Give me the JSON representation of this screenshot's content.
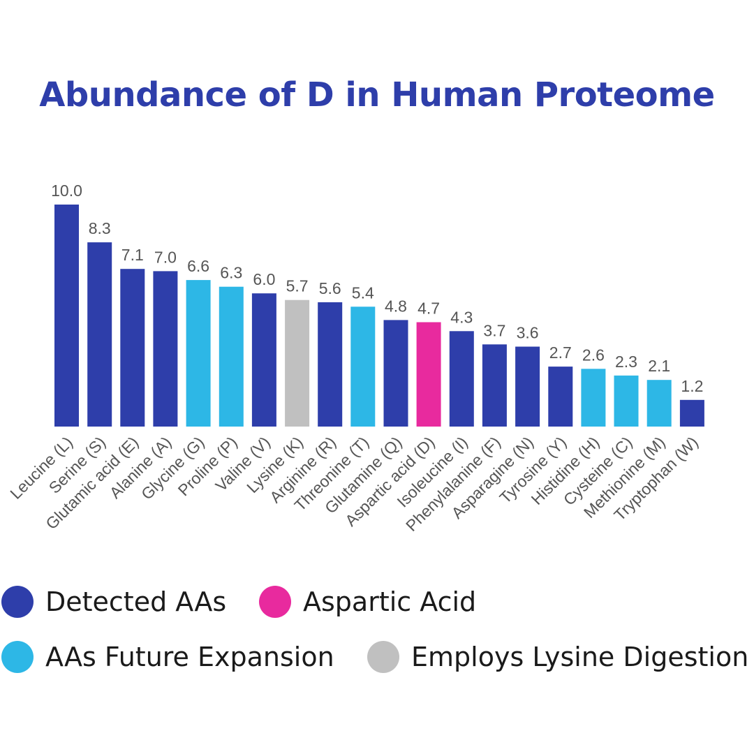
{
  "chart_data": {
    "type": "bar",
    "title": "Abundance of D in Human Proteome",
    "categories": [
      "Leucine (L)",
      "Serine (S)",
      "Glutamic acid (E)",
      "Alanine (A)",
      "Glycine (G)",
      "Proline (P)",
      "Valine (V)",
      "Lysine (K)",
      "Arginine (R)",
      "Threonine (T)",
      "Glutamine (Q)",
      "Aspartic acid (D)",
      "Isoleucine (I)",
      "Phenylalanine (F)",
      "Asparagine (N)",
      "Tyrosine (Y)",
      "Histidine (H)",
      "Cysteine (C)",
      "Methionine (M)",
      "Tryptophan (W)"
    ],
    "values": [
      10.0,
      8.3,
      7.1,
      7.0,
      6.6,
      6.3,
      6.0,
      5.7,
      5.6,
      5.4,
      4.8,
      4.7,
      4.3,
      3.7,
      3.6,
      2.7,
      2.6,
      2.3,
      2.1,
      1.2
    ],
    "value_labels": [
      "10.0",
      "8.3",
      "7.1",
      "7.0",
      "6.6",
      "6.3",
      "6.0",
      "5.7",
      "5.6",
      "5.4",
      "4.8",
      "4.7",
      "4.3",
      "3.7",
      "3.6",
      "2.7",
      "2.6",
      "2.3",
      "2.1",
      "1.2"
    ],
    "groups": [
      "detected",
      "detected",
      "detected",
      "detected",
      "future",
      "future",
      "detected",
      "lysine",
      "detected",
      "future",
      "detected",
      "aspartic",
      "detected",
      "detected",
      "detected",
      "detected",
      "future",
      "future",
      "future",
      "detected"
    ],
    "ylim": [
      0,
      10
    ],
    "grid": false,
    "legend": [
      {
        "key": "detected",
        "label": "Detected AAs",
        "color": "#2e3eaa"
      },
      {
        "key": "aspartic",
        "label": "Aspartic Acid",
        "color": "#e82a9e"
      },
      {
        "key": "future",
        "label": "AAs Future Expansion",
        "color": "#2db7e6"
      },
      {
        "key": "lysine",
        "label": "Employs Lysine Digestion",
        "color": "#c0c0c0"
      }
    ],
    "legend_position": "bottom",
    "xlabel": "",
    "ylabel": ""
  },
  "colors": {
    "title": "#2e3eaa",
    "value_label": "#555555",
    "tick_label": "#555555"
  }
}
